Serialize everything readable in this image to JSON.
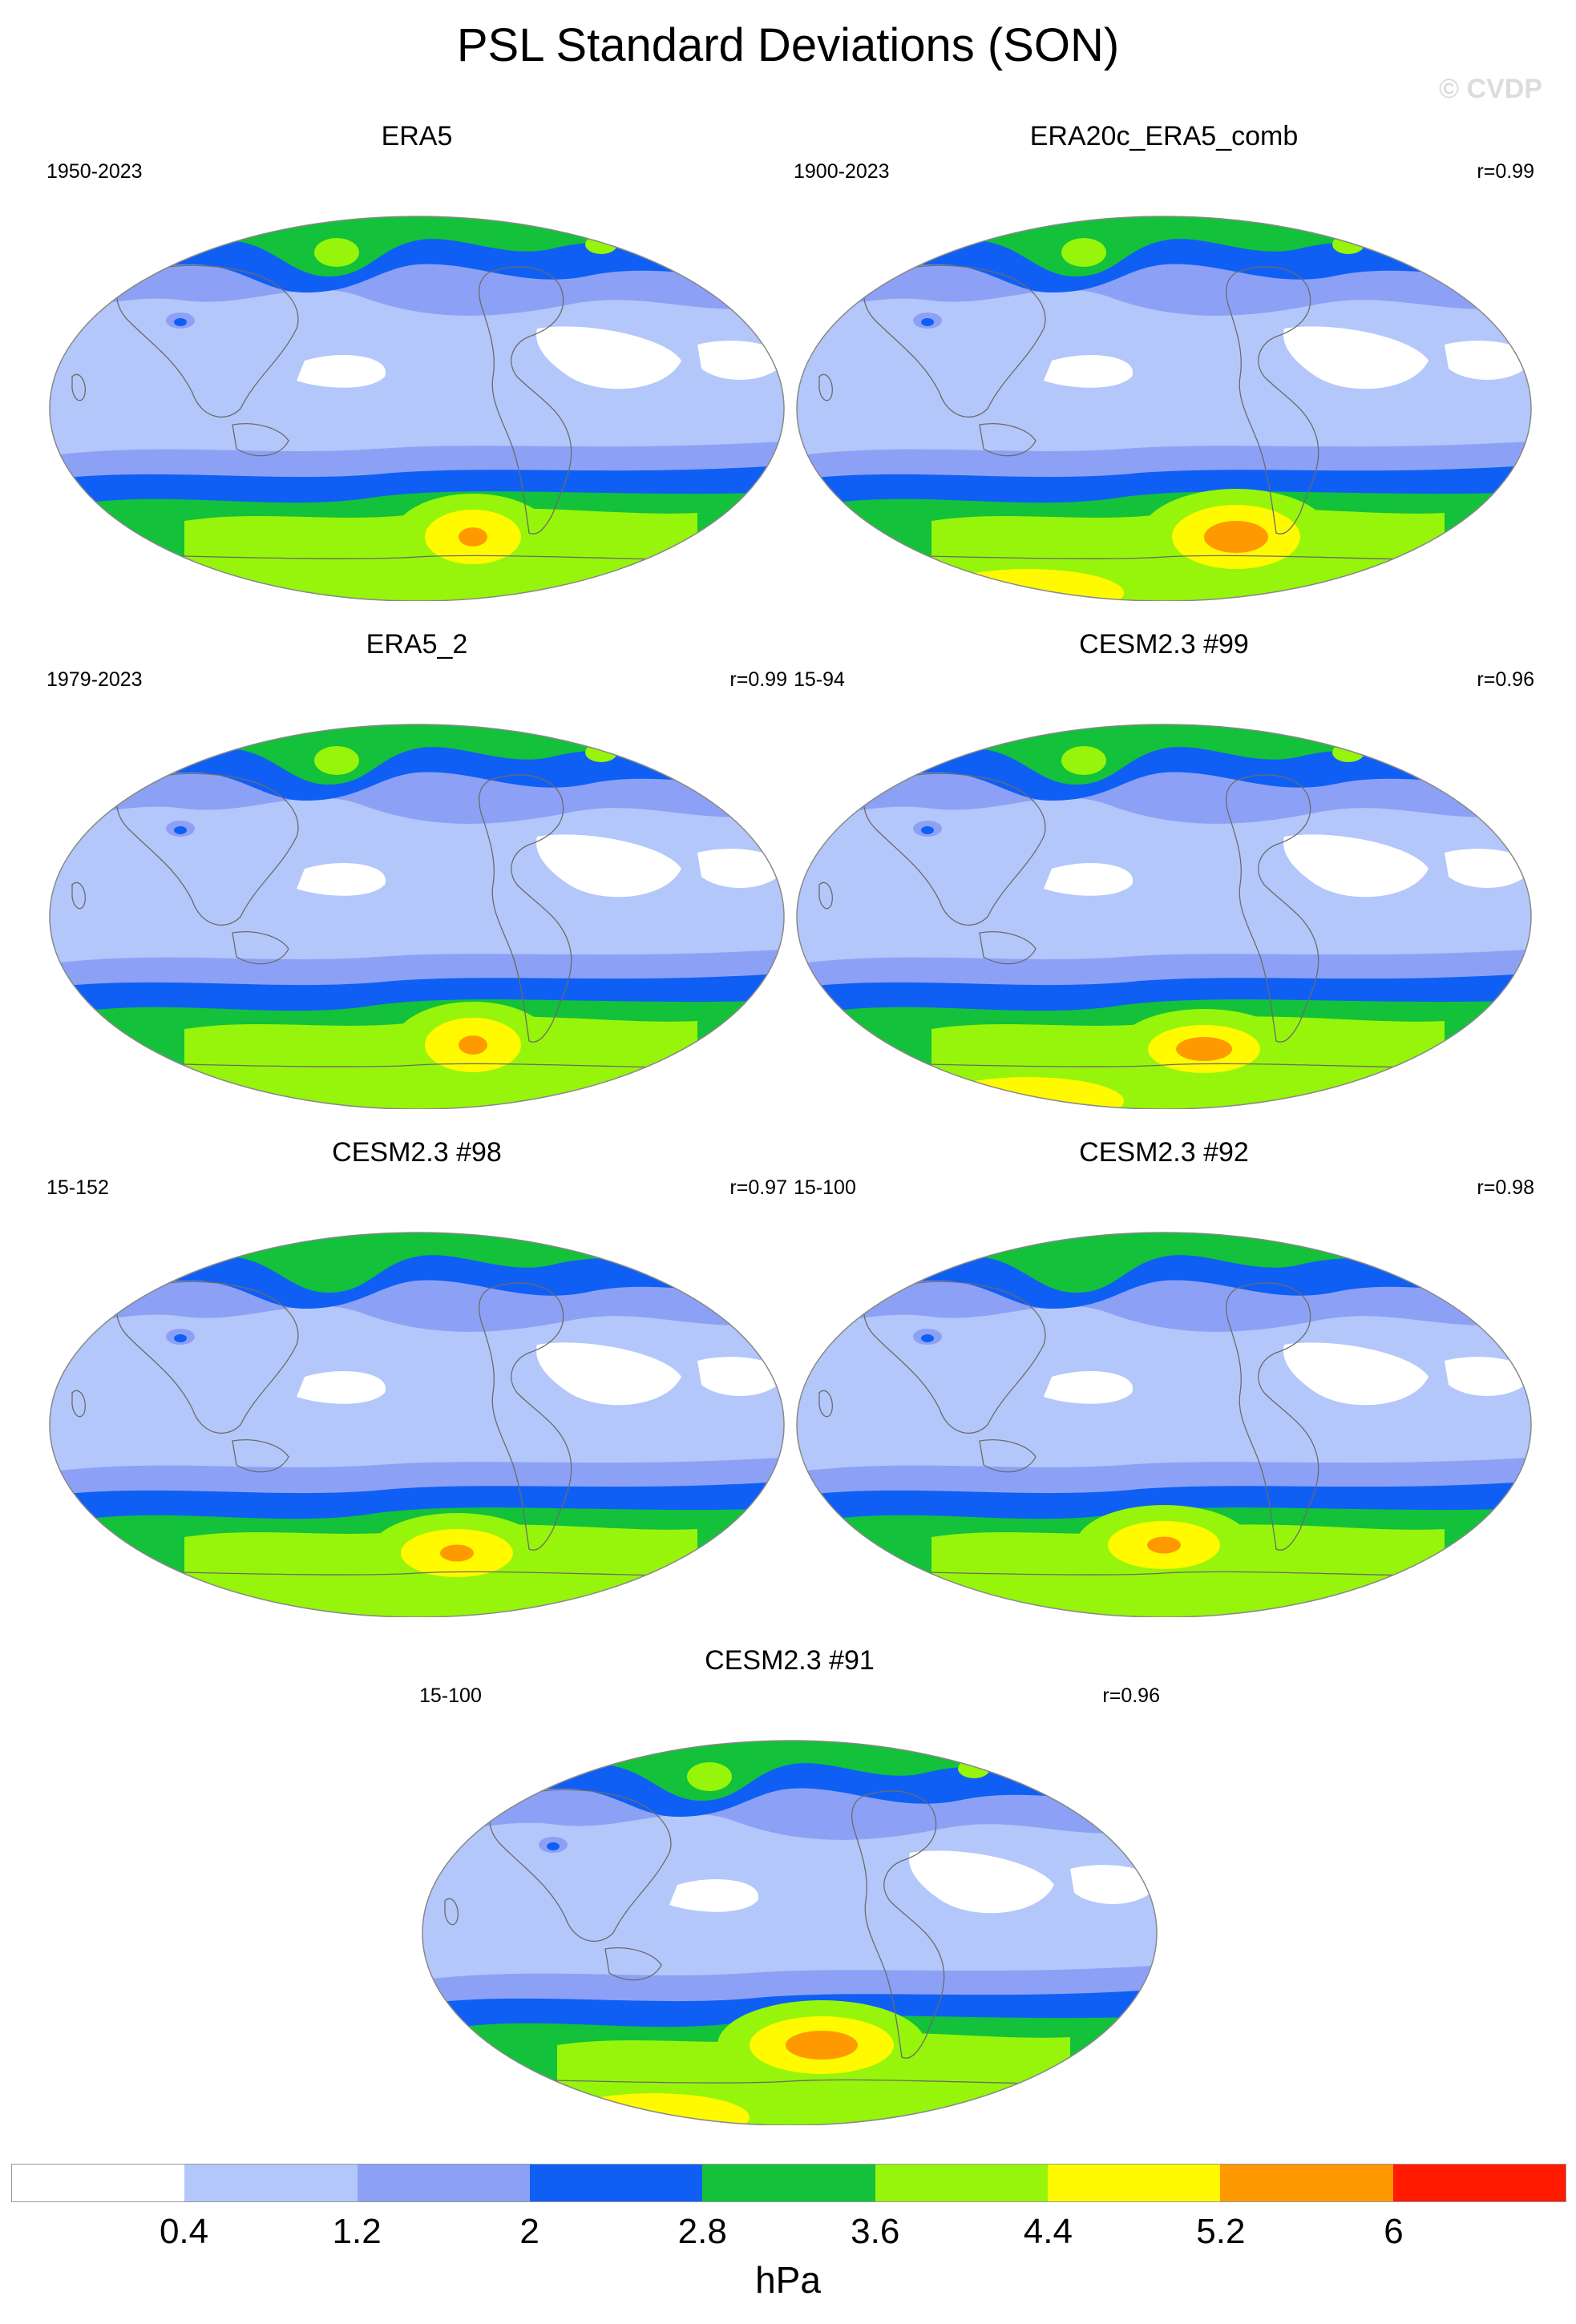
{
  "title": "PSL Standard Deviations (SON)",
  "watermark": "© CVDP",
  "colors": [
    "#ffffff",
    "#b4c7fa",
    "#8ca1f5",
    "#0f5ff5",
    "#13c13a",
    "#96f50a",
    "#fffa00",
    "#ff9900",
    "#ff1a00"
  ],
  "panels": [
    {
      "title": "ERA5",
      "period": "1950-2023",
      "r": "",
      "pattern": "era5"
    },
    {
      "title": "ERA20c_ERA5_comb",
      "period": "1900-2023",
      "r": "r=0.99",
      "pattern": "era20c"
    },
    {
      "title": "ERA5_2",
      "period": "1979-2023",
      "r": "r=0.99",
      "pattern": "era5"
    },
    {
      "title": "CESM2.3 #99",
      "period": "15-94",
      "r": "r=0.96",
      "pattern": "cesm_a"
    },
    {
      "title": "CESM2.3 #98",
      "period": "15-152",
      "r": "r=0.97",
      "pattern": "cesm_b"
    },
    {
      "title": "CESM2.3 #92",
      "period": "15-100",
      "r": "r=0.98",
      "pattern": "cesm_c"
    },
    {
      "title": "CESM2.3 #91",
      "period": "15-100",
      "r": "r=0.96",
      "pattern": "cesm_d"
    }
  ],
  "colorbar": {
    "labels": [
      "0.4",
      "1.2",
      "2",
      "2.8",
      "3.6",
      "4.4",
      "5.2",
      "6"
    ],
    "units": "hPa"
  }
}
